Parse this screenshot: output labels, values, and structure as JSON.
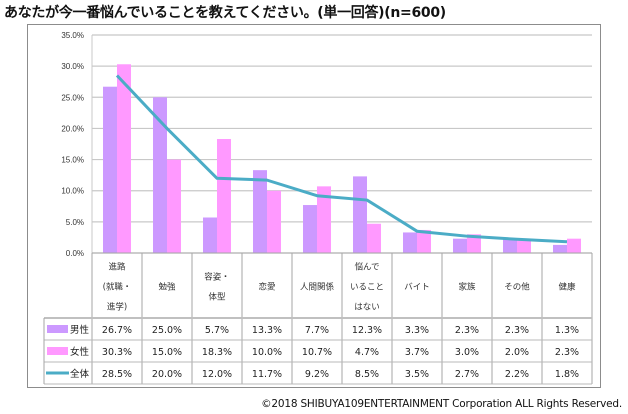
{
  "chart_data": {
    "type": "bar",
    "title": "あなたが今一番悩んでいることを教えてください。(単一回答)(n=600)",
    "categories": [
      [
        "進路",
        "(就職・",
        "進学)"
      ],
      [
        "勉強"
      ],
      [
        "容姿・",
        "体型"
      ],
      [
        "恋愛"
      ],
      [
        "人間関係"
      ],
      [
        "悩んで",
        "いること",
        "はない"
      ],
      [
        "バイト"
      ],
      [
        "家族"
      ],
      [
        "その他"
      ],
      [
        "健康"
      ]
    ],
    "series": [
      {
        "name": "男性",
        "kind": "bar",
        "color": "#cc99ff",
        "values": [
          26.7,
          25.0,
          5.7,
          13.3,
          7.7,
          12.3,
          3.3,
          2.3,
          2.3,
          1.3
        ],
        "labels": [
          "26.7%",
          "25.0%",
          "5.7%",
          "13.3%",
          "7.7%",
          "12.3%",
          "3.3%",
          "2.3%",
          "2.3%",
          "1.3%"
        ]
      },
      {
        "name": "女性",
        "kind": "bar",
        "color": "#ff99ff",
        "values": [
          30.3,
          15.0,
          18.3,
          10.0,
          10.7,
          4.7,
          3.7,
          3.0,
          2.0,
          2.3
        ],
        "labels": [
          "30.3%",
          "15.0%",
          "18.3%",
          "10.0%",
          "10.7%",
          "4.7%",
          "3.7%",
          "3.0%",
          "2.0%",
          "2.3%"
        ]
      },
      {
        "name": "全体",
        "kind": "line",
        "color": "#4bacc6",
        "values": [
          28.5,
          20.0,
          12.0,
          11.7,
          9.2,
          8.5,
          3.5,
          2.7,
          2.2,
          1.8
        ],
        "labels": [
          "28.5%",
          "20.0%",
          "12.0%",
          "11.7%",
          "9.2%",
          "8.5%",
          "3.5%",
          "2.7%",
          "2.2%",
          "1.8%"
        ]
      }
    ],
    "yticks": [
      "0.0%",
      "5.0%",
      "10.0%",
      "15.0%",
      "20.0%",
      "25.0%",
      "30.0%",
      "35.0%"
    ],
    "ylim": [
      0,
      35
    ],
    "xlabel": "",
    "ylabel": "",
    "grid": true,
    "legend": "data-table-left"
  },
  "footer": "©2018  SHIBUYA109ENTERTAINMENT Corporation   ALL Rights Reserved."
}
